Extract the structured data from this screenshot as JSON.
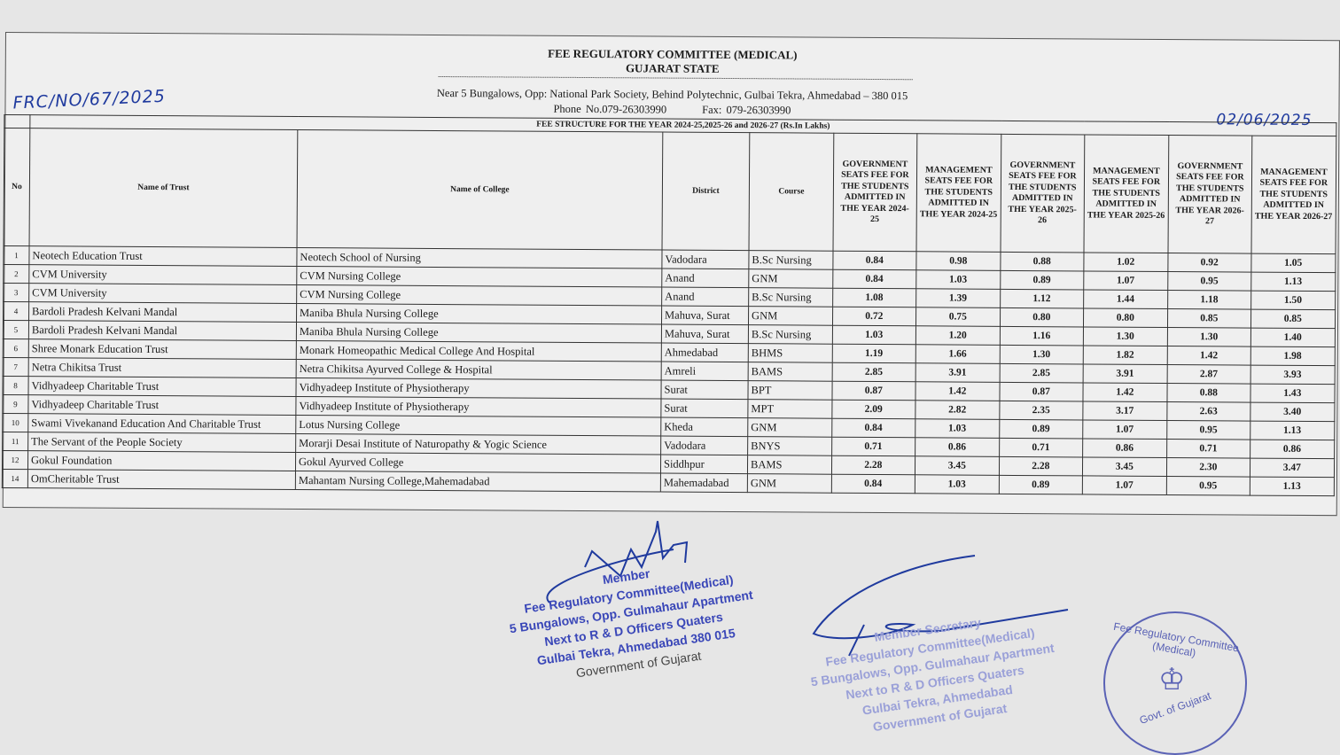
{
  "header": {
    "title": "FEE REGULATORY COMMITTEE (MEDICAL)",
    "subtitle": "GUJARAT STATE",
    "address": "Near 5 Bungalows, Opp: National Park Society, Behind Polytechnic, Gulbai Tekra, Ahmedabad – 380 015",
    "phone": "Phone No.079-26303990",
    "fax": "Fax: 079-26303990",
    "reference": "FRC/NO/67/2025",
    "date": "02/06/2025"
  },
  "table": {
    "caption": "FEE STRUCTURE FOR THE YEAR 2024-25,2025-26 and 2026-27 (Rs.In Lakhs)",
    "columns": [
      "No",
      "Name of Trust",
      "Name of College",
      "District",
      "Course",
      "GOVERNMENT SEATS FEE FOR THE STUDENTS ADMITTED IN THE YEAR 2024-25",
      "MANAGEMENT SEATS FEE FOR THE STUDENTS ADMITTED IN THE YEAR 2024-25",
      "GOVERNMENT SEATS FEE FOR THE STUDENTS ADMITTED IN THE YEAR 2025-26",
      "MANAGEMENT SEATS FEE FOR THE STUDENTS ADMITTED IN THE YEAR 2025-26",
      "GOVERNMENT SEATS FEE FOR THE STUDENTS ADMITTED IN THE YEAR 2026-27",
      "MANAGEMENT SEATS FEE FOR THE STUDENTS ADMITTED IN THE YEAR 2026-27"
    ],
    "rows": [
      [
        "1",
        "Neotech Education Trust",
        "Neotech School of Nursing",
        "Vadodara",
        "B.Sc Nursing",
        "0.84",
        "0.98",
        "0.88",
        "1.02",
        "0.92",
        "1.05"
      ],
      [
        "2",
        "CVM University",
        "CVM Nursing College",
        "Anand",
        "GNM",
        "0.84",
        "1.03",
        "0.89",
        "1.07",
        "0.95",
        "1.13"
      ],
      [
        "3",
        "CVM University",
        "CVM Nursing College",
        "Anand",
        "B.Sc Nursing",
        "1.08",
        "1.39",
        "1.12",
        "1.44",
        "1.18",
        "1.50"
      ],
      [
        "4",
        "Bardoli Pradesh Kelvani Mandal",
        "Maniba Bhula Nursing College",
        "Mahuva, Surat",
        "GNM",
        "0.72",
        "0.75",
        "0.80",
        "0.80",
        "0.85",
        "0.85"
      ],
      [
        "5",
        "Bardoli Pradesh Kelvani Mandal",
        "Maniba Bhula Nursing College",
        "Mahuva, Surat",
        "B.Sc Nursing",
        "1.03",
        "1.20",
        "1.16",
        "1.30",
        "1.30",
        "1.40"
      ],
      [
        "6",
        "Shree Monark Education Trust",
        "Monark Homeopathic Medical College And Hospital",
        "Ahmedabad",
        "BHMS",
        "1.19",
        "1.66",
        "1.30",
        "1.82",
        "1.42",
        "1.98"
      ],
      [
        "7",
        "Netra Chikitsa Trust",
        "Netra Chikitsa Ayurved College & Hospital",
        "Amreli",
        "BAMS",
        "2.85",
        "3.91",
        "2.85",
        "3.91",
        "2.87",
        "3.93"
      ],
      [
        "8",
        "Vidhyadeep Charitable Trust",
        "Vidhyadeep Institute of Physiotherapy",
        "Surat",
        "BPT",
        "0.87",
        "1.42",
        "0.87",
        "1.42",
        "0.88",
        "1.43"
      ],
      [
        "9",
        "Vidhyadeep Charitable Trust",
        "Vidhyadeep Institute of Physiotherapy",
        "Surat",
        "MPT",
        "2.09",
        "2.82",
        "2.35",
        "3.17",
        "2.63",
        "3.40"
      ],
      [
        "10",
        "Swami Vivekanand Education And Charitable Trust",
        "Lotus Nursing College",
        "Kheda",
        "GNM",
        "0.84",
        "1.03",
        "0.89",
        "1.07",
        "0.95",
        "1.13"
      ],
      [
        "11",
        "The Servant of the People Society",
        "Morarji Desai Institute of Naturopathy & Yogic Science",
        "Vadodara",
        "BNYS",
        "0.71",
        "0.86",
        "0.71",
        "0.86",
        "0.71",
        "0.86"
      ],
      [
        "12",
        "Gokul Foundation",
        "Gokul Ayurved College",
        "Siddhpur",
        "BAMS",
        "2.28",
        "3.45",
        "2.28",
        "3.45",
        "2.30",
        "3.47"
      ],
      [
        "14",
        "OmCheritable Trust",
        "Mahantam Nursing College,Mahemadabad",
        "Mahemadabad",
        "GNM",
        "0.84",
        "1.03",
        "0.89",
        "1.07",
        "0.95",
        "1.13"
      ]
    ]
  },
  "stamps": {
    "member": [
      "Member",
      "Fee Regulatory Committee(Medical)",
      "5 Bungalows, Opp. Gulmahaur Apartment",
      "Next to R & D Officers Quaters",
      "Gulbai Tekra, Ahmedabad  380 015",
      "Government of Gujarat"
    ],
    "secretary": [
      "Member Secretary",
      "Fee Regulatory Committee(Medical)",
      "5 Bungalows, Opp. Gulmahaur Apartment",
      "Next to R & D Officers Quaters",
      "Gulbai Tekra, Ahmedabad",
      "Government of Gujarat"
    ],
    "seal": {
      "top": "Fee Regulatory Committee (Medical)",
      "bottom": "Govt. of Gujarat"
    }
  },
  "colors": {
    "ink": "#1f3a9e",
    "stamp": "#3a47b8",
    "paper": "#efefef"
  }
}
